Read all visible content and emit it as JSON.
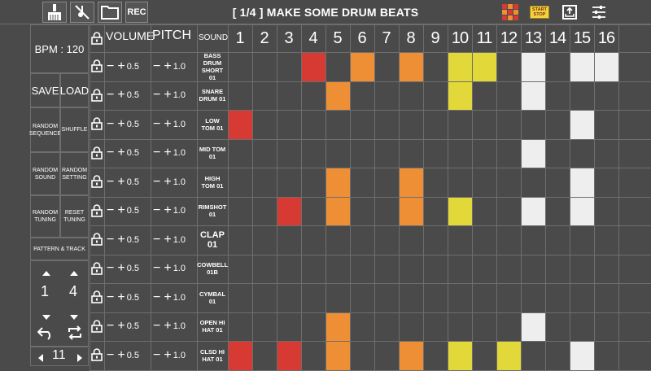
{
  "toolbar": {
    "rec_label": "REC",
    "title": "[ 1/4 ] MAKE SOME DRUM BEATS",
    "start_stop_top": "START",
    "start_stop_bottom": "STOP",
    "icons": [
      "broom-icon",
      "mute-icon",
      "folder-icon",
      "grid-icon",
      "start-stop-icon",
      "export-icon",
      "settings-sliders-icon"
    ]
  },
  "left_panel": {
    "bpm_label": "BPM : 120",
    "save_label": "SAVE",
    "load_label": "LOAD",
    "random_sequence_label": "RANDOM SEQUENCE",
    "shuffle_label": "SHUFFLE",
    "random_sound_label": "RANDOM SOUND",
    "random_setting_label": "RANDOM SETTING",
    "random_tuning_label": "RANDOM TUNING",
    "reset_tuning_label": "RESET TUNING",
    "pattern_track_label": "PATTERN & TRACK",
    "pattern_value": "1",
    "track_value": "4",
    "page_value": "11"
  },
  "grid_headers": {
    "volume": "VOLUME",
    "pitch": "PITCH",
    "sound": "SOUND",
    "steps": [
      "1",
      "2",
      "3",
      "4",
      "5",
      "6",
      "7",
      "8",
      "9",
      "10",
      "11",
      "12",
      "13",
      "14",
      "15",
      "16"
    ]
  },
  "control_labels": {
    "minus": "−",
    "plus": "+",
    "volume_value": "0.5",
    "pitch_value": "1.0"
  },
  "colors": {
    "red": "#d63a32",
    "orange": "#ef8f35",
    "yellow": "#e3d83a",
    "white": "#eeeeee",
    "bg": "#4a4a4a"
  },
  "tracks": [
    {
      "name": "BASS DRUM SHORT 01",
      "big": false,
      "cells": {
        "4": "red",
        "6": "orange",
        "8": "orange",
        "10": "yellow",
        "11": "yellow",
        "13": "white",
        "15": "white",
        "16": "white"
      }
    },
    {
      "name": "SNARE DRUM 01",
      "big": false,
      "cells": {
        "5": "orange",
        "10": "yellow",
        "13": "white"
      }
    },
    {
      "name": "LOW TOM 01",
      "big": false,
      "cells": {
        "1": "red",
        "15": "white"
      }
    },
    {
      "name": "MID TOM 01",
      "big": false,
      "cells": {
        "13": "white"
      }
    },
    {
      "name": "HIGH TOM 01",
      "big": false,
      "cells": {
        "5": "orange",
        "8": "orange",
        "15": "white"
      }
    },
    {
      "name": "RIMSHOT 01",
      "big": false,
      "cells": {
        "3": "red",
        "5": "orange",
        "8": "orange",
        "10": "yellow",
        "13": "white",
        "15": "white"
      }
    },
    {
      "name": "CLAP 01",
      "big": true,
      "cells": {}
    },
    {
      "name": "COWBELL 01B",
      "big": false,
      "cells": {}
    },
    {
      "name": "CYMBAL 01",
      "big": false,
      "cells": {}
    },
    {
      "name": "OPEN HI HAT 01",
      "big": false,
      "cells": {
        "5": "orange",
        "13": "white"
      }
    },
    {
      "name": "CLSD HI HAT 01",
      "big": false,
      "cells": {
        "1": "red",
        "3": "red",
        "5": "orange",
        "8": "orange",
        "10": "yellow",
        "12": "yellow",
        "15": "white"
      }
    }
  ]
}
